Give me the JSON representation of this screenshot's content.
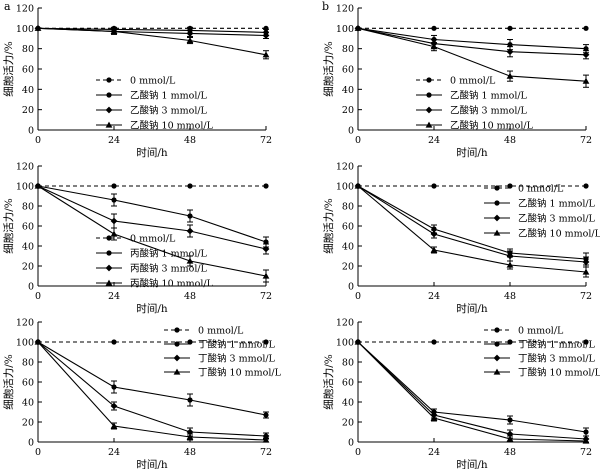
{
  "figure": {
    "panel_labels": [
      "a",
      "b"
    ]
  },
  "chart_data": [
    {
      "type": "line",
      "panel": "a",
      "row": 0,
      "col": 0,
      "xlabel": "时间/h",
      "ylabel": "细胞活力/%",
      "x": [
        0,
        24,
        48,
        72
      ],
      "xlim": [
        0,
        72
      ],
      "ylim": [
        0,
        120
      ],
      "xticks": [
        0,
        24,
        48,
        72
      ],
      "yticks": [
        0,
        20,
        40,
        60,
        80,
        100,
        120
      ],
      "legend_position": "lower-left",
      "series": [
        {
          "name": "0 mmol/L",
          "values": [
            100,
            100,
            100,
            100
          ],
          "err": [
            0,
            0,
            0,
            0
          ],
          "style": "dashed",
          "marker": "circle"
        },
        {
          "name": "乙酸钠 1 mmol/L",
          "values": [
            100,
            99,
            98,
            96
          ],
          "err": [
            0,
            2,
            3,
            3
          ],
          "style": "solid",
          "marker": "circle"
        },
        {
          "name": "乙酸钠 3 mmol/L",
          "values": [
            100,
            97,
            95,
            93
          ],
          "err": [
            0,
            2,
            3,
            3
          ],
          "style": "solid",
          "marker": "diamond"
        },
        {
          "name": "乙酸钠 10 mmol/L",
          "values": [
            100,
            97,
            88,
            74
          ],
          "err": [
            0,
            3,
            3,
            4
          ],
          "style": "solid",
          "marker": "triangle"
        }
      ]
    },
    {
      "type": "line",
      "panel": "b",
      "row": 0,
      "col": 1,
      "xlabel": "时间/h",
      "ylabel": "细胞活力/%",
      "x": [
        0,
        24,
        48,
        72
      ],
      "xlim": [
        0,
        72
      ],
      "ylim": [
        0,
        120
      ],
      "xticks": [
        0,
        24,
        48,
        72
      ],
      "yticks": [
        0,
        20,
        40,
        60,
        80,
        100,
        120
      ],
      "legend_position": "lower-left",
      "series": [
        {
          "name": "0 mmol/L",
          "values": [
            100,
            100,
            100,
            100
          ],
          "err": [
            0,
            0,
            0,
            0
          ],
          "style": "dashed",
          "marker": "circle"
        },
        {
          "name": "乙酸钠 1 mmol/L",
          "values": [
            100,
            89,
            84,
            80
          ],
          "err": [
            0,
            4,
            5,
            4
          ],
          "style": "solid",
          "marker": "circle"
        },
        {
          "name": "乙酸钠 3 mmol/L",
          "values": [
            100,
            85,
            77,
            74
          ],
          "err": [
            0,
            4,
            5,
            4
          ],
          "style": "solid",
          "marker": "diamond"
        },
        {
          "name": "乙酸钠 10 mmol/L",
          "values": [
            100,
            82,
            53,
            48
          ],
          "err": [
            0,
            4,
            5,
            6
          ],
          "style": "solid",
          "marker": "triangle"
        }
      ]
    },
    {
      "type": "line",
      "row": 1,
      "col": 0,
      "xlabel": "时间/h",
      "ylabel": "细胞活力/%",
      "x": [
        0,
        24,
        48,
        72
      ],
      "xlim": [
        0,
        72
      ],
      "ylim": [
        0,
        120
      ],
      "xticks": [
        0,
        24,
        48,
        72
      ],
      "yticks": [
        0,
        20,
        40,
        60,
        80,
        100,
        120
      ],
      "legend_position": "lower-left",
      "series": [
        {
          "name": "0 mmol/L",
          "values": [
            100,
            100,
            100,
            100
          ],
          "err": [
            0,
            0,
            0,
            0
          ],
          "style": "dashed",
          "marker": "circle"
        },
        {
          "name": "丙酸钠 1 mmol/L",
          "values": [
            100,
            86,
            70,
            44
          ],
          "err": [
            0,
            6,
            6,
            5
          ],
          "style": "solid",
          "marker": "circle"
        },
        {
          "name": "丙酸钠 3 mmol/L",
          "values": [
            100,
            65,
            55,
            37
          ],
          "err": [
            0,
            7,
            6,
            5
          ],
          "style": "solid",
          "marker": "diamond"
        },
        {
          "name": "丙酸钠 10 mmol/L",
          "values": [
            100,
            52,
            25,
            10
          ],
          "err": [
            0,
            6,
            5,
            6
          ],
          "style": "solid",
          "marker": "triangle"
        }
      ]
    },
    {
      "type": "line",
      "row": 1,
      "col": 1,
      "xlabel": "时间/h",
      "ylabel": "细胞活力/%",
      "x": [
        0,
        24,
        48,
        72
      ],
      "xlim": [
        0,
        72
      ],
      "ylim": [
        0,
        120
      ],
      "xticks": [
        0,
        24,
        48,
        72
      ],
      "yticks": [
        0,
        20,
        40,
        60,
        80,
        100,
        120
      ],
      "legend_position": "right",
      "series": [
        {
          "name": "0 mmol/L",
          "values": [
            100,
            100,
            100,
            100
          ],
          "err": [
            0,
            0,
            0,
            0
          ],
          "style": "dashed",
          "marker": "circle"
        },
        {
          "name": "乙酸钠 1 mmol/L",
          "values": [
            100,
            57,
            33,
            27
          ],
          "err": [
            0,
            4,
            4,
            6
          ],
          "style": "solid",
          "marker": "circle"
        },
        {
          "name": "乙酸钠 3 mmol/L",
          "values": [
            100,
            52,
            30,
            24
          ],
          "err": [
            0,
            4,
            5,
            5
          ],
          "style": "solid",
          "marker": "diamond"
        },
        {
          "name": "乙酸钠 10 mmol/L",
          "values": [
            100,
            36,
            21,
            14
          ],
          "err": [
            0,
            3,
            4,
            5
          ],
          "style": "solid",
          "marker": "triangle"
        }
      ]
    },
    {
      "type": "line",
      "row": 2,
      "col": 0,
      "xlabel": "时间/h",
      "ylabel": "细胞活力/%",
      "x": [
        0,
        24,
        48,
        72
      ],
      "xlim": [
        0,
        72
      ],
      "ylim": [
        0,
        120
      ],
      "xticks": [
        0,
        24,
        48,
        72
      ],
      "yticks": [
        0,
        20,
        40,
        60,
        80,
        100,
        120
      ],
      "legend_position": "top-right",
      "series": [
        {
          "name": "0 mmol/L",
          "values": [
            100,
            100,
            100,
            100
          ],
          "err": [
            0,
            0,
            0,
            0
          ],
          "style": "dashed",
          "marker": "circle"
        },
        {
          "name": "丁酸钠 1 mmol/L",
          "values": [
            100,
            55,
            42,
            27
          ],
          "err": [
            0,
            6,
            6,
            3
          ],
          "style": "solid",
          "marker": "circle"
        },
        {
          "name": "丁酸钠 3 mmol/L",
          "values": [
            100,
            36,
            10,
            6
          ],
          "err": [
            0,
            4,
            4,
            3
          ],
          "style": "solid",
          "marker": "diamond"
        },
        {
          "name": "丁酸钠 10 mmol/L",
          "values": [
            100,
            16,
            5,
            2
          ],
          "err": [
            0,
            3,
            3,
            2
          ],
          "style": "solid",
          "marker": "triangle"
        }
      ]
    },
    {
      "type": "line",
      "row": 2,
      "col": 1,
      "xlabel": "时间/h",
      "ylabel": "细胞活力/%",
      "x": [
        0,
        24,
        48,
        72
      ],
      "xlim": [
        0,
        72
      ],
      "ylim": [
        0,
        120
      ],
      "xticks": [
        0,
        24,
        48,
        72
      ],
      "yticks": [
        0,
        20,
        40,
        60,
        80,
        100,
        120
      ],
      "legend_position": "top-right",
      "series": [
        {
          "name": "0 mmol/L",
          "values": [
            100,
            100,
            100,
            100
          ],
          "err": [
            0,
            0,
            0,
            0
          ],
          "style": "dashed",
          "marker": "circle"
        },
        {
          "name": "丁酸钠 1 mmol/L",
          "values": [
            100,
            30,
            22,
            10
          ],
          "err": [
            0,
            3,
            4,
            4
          ],
          "style": "solid",
          "marker": "circle"
        },
        {
          "name": "丁酸钠 3 mmol/L",
          "values": [
            100,
            27,
            8,
            3
          ],
          "err": [
            0,
            3,
            4,
            3
          ],
          "style": "solid",
          "marker": "diamond"
        },
        {
          "name": "丁酸钠 10 mmol/L",
          "values": [
            100,
            24,
            3,
            1
          ],
          "err": [
            0,
            3,
            3,
            2
          ],
          "style": "solid",
          "marker": "triangle"
        }
      ]
    }
  ]
}
